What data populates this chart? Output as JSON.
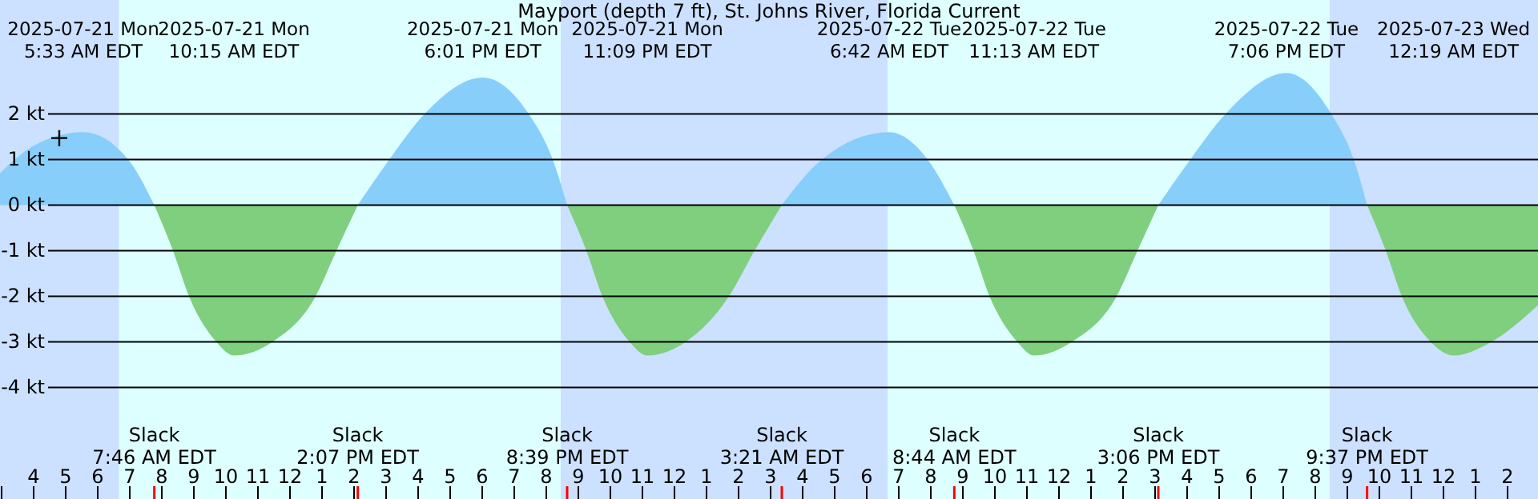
{
  "chart_data": {
    "type": "area",
    "title": "Mayport (depth 7 ft), St. Johns River, Florida Current",
    "x": [
      "2025-07-21T02:57",
      "2025-07-21T04:00",
      "2025-07-21T05:33",
      "2025-07-21T06:57",
      "2025-07-21T07:46",
      "2025-07-21T08:21",
      "2025-07-21T08:51",
      "2025-07-21T09:42",
      "2025-07-21T10:15",
      "2025-07-21T11:27",
      "2025-07-21T12:48",
      "2025-07-21T13:27",
      "2025-07-21T14:07",
      "2025-07-21T15:06",
      "2025-07-21T16:12",
      "2025-07-21T18:01",
      "2025-07-21T19:27",
      "2025-07-21T20:12",
      "2025-07-21T20:39",
      "2025-07-21T21:15",
      "2025-07-21T21:45",
      "2025-07-21T22:36",
      "2025-07-21T23:09",
      "2025-07-22T00:21",
      "2025-07-22T01:42",
      "2025-07-22T02:30",
      "2025-07-22T03:21",
      "2025-07-22T04:36",
      "2025-07-22T06:42",
      "2025-07-22T07:54",
      "2025-07-22T08:44",
      "2025-07-22T09:20",
      "2025-07-22T09:50",
      "2025-07-22T10:42",
      "2025-07-22T11:13",
      "2025-07-22T12:24",
      "2025-07-22T13:48",
      "2025-07-22T14:27",
      "2025-07-22T15:06",
      "2025-07-22T16:06",
      "2025-07-22T17:12",
      "2025-07-22T19:06",
      "2025-07-22T20:30",
      "2025-07-22T21:12",
      "2025-07-22T21:37",
      "2025-07-22T22:12",
      "2025-07-22T22:42",
      "2025-07-22T23:36",
      "2025-07-23T00:19",
      "2025-07-23T01:30",
      "2025-07-23T02:57"
    ],
    "series": [
      {
        "color": "#87cefa",
        "values": [
          0.7,
          1.3,
          1.6,
          1,
          0,
          null,
          null,
          null,
          null,
          null,
          null,
          null,
          0,
          1,
          2,
          2.8,
          2,
          1,
          0,
          null,
          null,
          null,
          null,
          null,
          null,
          null,
          0,
          1,
          1.6,
          1,
          0,
          null,
          null,
          null,
          null,
          null,
          null,
          null,
          0,
          1,
          2,
          2.9,
          2,
          1,
          0,
          null,
          null,
          null,
          null,
          null,
          null
        ]
      },
      {
        "color": "#7fcf7f",
        "values": [
          null,
          null,
          null,
          null,
          0,
          -1,
          -2,
          -3,
          -3.3,
          -3,
          -2,
          -1,
          0,
          null,
          null,
          null,
          null,
          null,
          0,
          -1,
          -2,
          -3,
          -3.3,
          -3,
          -2,
          -1,
          0,
          null,
          null,
          null,
          0,
          -1,
          -2,
          -3,
          -3.3,
          -3,
          -2,
          -1,
          0,
          null,
          null,
          null,
          null,
          null,
          0,
          -1,
          -2,
          -3,
          -3.3,
          -3,
          -2.2
        ]
      },
      {
        "type": "scatter",
        "x": [
          "2025-07-21T04:48"
        ],
        "values": [
          1.47
        ],
        "color": "#000000",
        "marker": "cross"
      }
    ],
    "xlim": [
      "2025-07-21T02:57",
      "2025-07-23T02:57"
    ],
    "xticks": [
      {
        "value": "2025-07-21T03:00",
        "label": null
      },
      {
        "value": "2025-07-21T04:00",
        "label": "4"
      },
      {
        "value": "2025-07-21T05:00",
        "label": "5"
      },
      {
        "value": "2025-07-21T06:00",
        "label": "6"
      },
      {
        "value": "2025-07-21T07:00",
        "label": "7"
      },
      {
        "value": "2025-07-21T08:00",
        "label": "8"
      },
      {
        "value": "2025-07-21T09:00",
        "label": "9"
      },
      {
        "value": "2025-07-21T10:00",
        "label": "10"
      },
      {
        "value": "2025-07-21T11:00",
        "label": "11"
      },
      {
        "value": "2025-07-21T12:00",
        "label": "12"
      },
      {
        "value": "2025-07-21T13:00",
        "label": "1"
      },
      {
        "value": "2025-07-21T14:00",
        "label": "2"
      },
      {
        "value": "2025-07-21T15:00",
        "label": "3"
      },
      {
        "value": "2025-07-21T16:00",
        "label": "4"
      },
      {
        "value": "2025-07-21T17:00",
        "label": "5"
      },
      {
        "value": "2025-07-21T18:00",
        "label": "6"
      },
      {
        "value": "2025-07-21T19:00",
        "label": "7"
      },
      {
        "value": "2025-07-21T20:00",
        "label": "8"
      },
      {
        "value": "2025-07-21T21:00",
        "label": "9"
      },
      {
        "value": "2025-07-21T22:00",
        "label": "10"
      },
      {
        "value": "2025-07-21T23:00",
        "label": "11"
      },
      {
        "value": "2025-07-22T00:00",
        "label": "12"
      },
      {
        "value": "2025-07-22T01:00",
        "label": "1"
      },
      {
        "value": "2025-07-22T02:00",
        "label": "2"
      },
      {
        "value": "2025-07-22T03:00",
        "label": "3"
      },
      {
        "value": "2025-07-22T04:00",
        "label": "4"
      },
      {
        "value": "2025-07-22T05:00",
        "label": "5"
      },
      {
        "value": "2025-07-22T06:00",
        "label": "6"
      },
      {
        "value": "2025-07-22T07:00",
        "label": "7"
      },
      {
        "value": "2025-07-22T08:00",
        "label": "8"
      },
      {
        "value": "2025-07-22T09:00",
        "label": "9"
      },
      {
        "value": "2025-07-22T10:00",
        "label": "10"
      },
      {
        "value": "2025-07-22T11:00",
        "label": "11"
      },
      {
        "value": "2025-07-22T12:00",
        "label": "12"
      },
      {
        "value": "2025-07-22T13:00",
        "label": "1"
      },
      {
        "value": "2025-07-22T14:00",
        "label": "2"
      },
      {
        "value": "2025-07-22T15:00",
        "label": "3"
      },
      {
        "value": "2025-07-22T16:00",
        "label": "4"
      },
      {
        "value": "2025-07-22T17:00",
        "label": "5"
      },
      {
        "value": "2025-07-22T18:00",
        "label": "6"
      },
      {
        "value": "2025-07-22T19:00",
        "label": "7"
      },
      {
        "value": "2025-07-22T20:00",
        "label": "8"
      },
      {
        "value": "2025-07-22T21:00",
        "label": "9"
      },
      {
        "value": "2025-07-22T22:00",
        "label": "10"
      },
      {
        "value": "2025-07-22T23:00",
        "label": "11"
      },
      {
        "value": "2025-07-23T00:00",
        "label": "12"
      },
      {
        "value": "2025-07-23T01:00",
        "label": "1"
      },
      {
        "value": "2025-07-23T02:00",
        "label": "2"
      }
    ],
    "ylim": [
      -6.45,
      4.5
    ],
    "yticks": [
      {
        "value": 2,
        "label": "2 kt"
      },
      {
        "value": 1,
        "label": "1 kt"
      },
      {
        "value": 0,
        "label": "0 kt"
      },
      {
        "value": -1,
        "label": "-1 kt"
      },
      {
        "value": -2,
        "label": "-2 kt"
      },
      {
        "value": -3,
        "label": "-3 kt"
      },
      {
        "value": -4,
        "label": "-4 kt"
      }
    ],
    "grid": "y",
    "bands": [
      {
        "axis": "x",
        "from": "2025-07-21T02:57",
        "to": "2025-07-21T06:40",
        "color": "#cce0ff"
      },
      {
        "axis": "x",
        "from": "2025-07-21T06:40",
        "to": "2025-07-21T20:27",
        "color": "#ddffff"
      },
      {
        "axis": "x",
        "from": "2025-07-21T20:27",
        "to": "2025-07-22T06:39",
        "color": "#cce0ff"
      },
      {
        "axis": "x",
        "from": "2025-07-22T06:39",
        "to": "2025-07-22T20:27",
        "color": "#ddffff"
      },
      {
        "axis": "x",
        "from": "2025-07-22T20:27",
        "to": "2025-07-23T02:57",
        "color": "#cce0ff"
      }
    ],
    "annotations": [
      "2025-07-21 Mon\n5:33 AM EDT",
      "Slack\n7:46 AM EDT",
      "2025-07-21 Mon\n10:15 AM EDT",
      "Slack\n2:07 PM EDT",
      "2025-07-21 Mon\n6:01 PM EDT",
      "Slack\n8:39 PM EDT",
      "2025-07-21 Mon\n11:09 PM EDT",
      "Slack\n3:21 AM EDT",
      "2025-07-22 Tue\n6:42 AM EDT",
      "Slack\n8:44 AM EDT",
      "2025-07-22 Tue\n11:13 AM EDT",
      "Slack\n3:06 PM EDT",
      "2025-07-22 Tue\n7:06 PM EDT",
      "Slack\n9:37 PM EDT",
      "2025-07-23 Wed\n12:19 AM EDT"
    ]
  }
}
